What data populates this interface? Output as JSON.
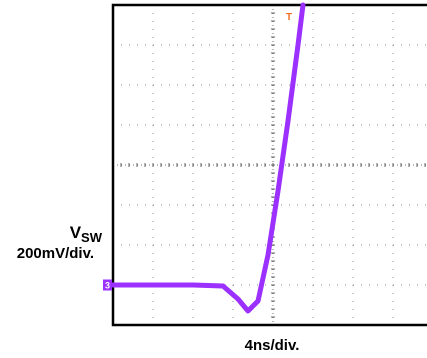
{
  "chart_data": {
    "type": "line",
    "channel_marker": "3",
    "trigger_marker": "T",
    "ylabel_main": "V",
    "ylabel_sub": "SW",
    "ylabel_scale": "200mV/div.",
    "xlabel": "4ns/div.",
    "grid": true,
    "xlim": [
      0,
      32
    ],
    "ylim": [
      -1000,
      600
    ],
    "x_divisions": 8,
    "y_divisions": 8,
    "series": [
      {
        "color": "#9b30ff",
        "x": [
          0,
          8,
          11,
          12.5,
          13.5,
          14.5,
          15.5,
          16.5,
          17.5,
          18.5,
          19
        ],
        "values": [
          -800,
          -800,
          -805,
          -870,
          -930,
          -880,
          -650,
          -330,
          20,
          400,
          600
        ]
      }
    ],
    "colors": {
      "trace": "#9b30ff",
      "channel_marker": "#9b30ff",
      "trigger_marker": "#f07020",
      "grid": "#888888",
      "frame": "#000000"
    }
  }
}
